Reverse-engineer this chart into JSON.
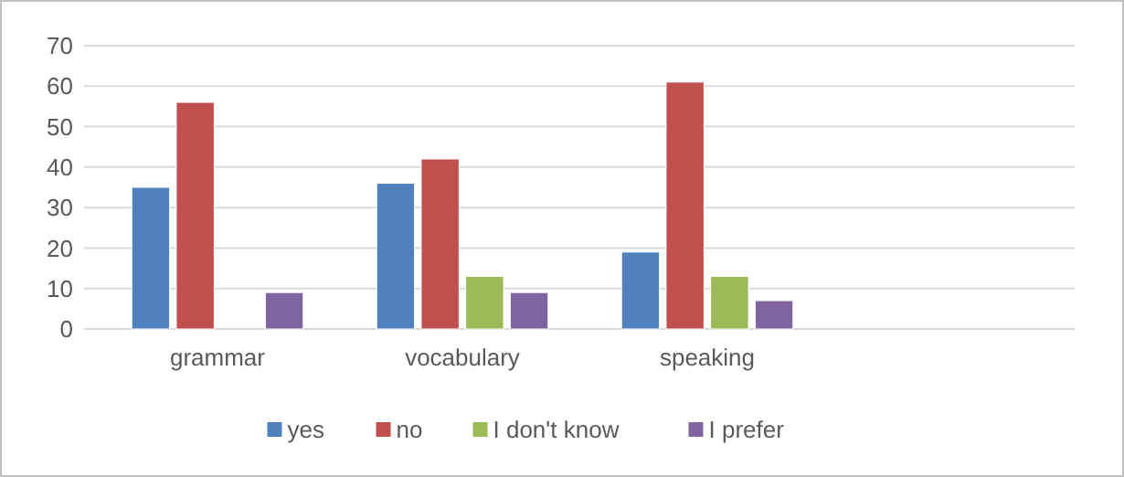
{
  "chart_data": {
    "type": "bar",
    "categories": [
      "grammar",
      "vocabulary",
      "speaking",
      null
    ],
    "series": [
      {
        "name": "yes",
        "color": "#4f81bd",
        "values": [
          35,
          36,
          19,
          null
        ]
      },
      {
        "name": "no",
        "color": "#c0504d",
        "values": [
          56,
          42,
          61,
          null
        ]
      },
      {
        "name": "I don't know",
        "color": "#9bbb59",
        "values": [
          null,
          13,
          13,
          null
        ]
      },
      {
        "name": "I prefer",
        "color": "#8064a2",
        "values": [
          9,
          9,
          7,
          null
        ]
      }
    ],
    "ylim": [
      0,
      70
    ],
    "yticks": [
      0,
      10,
      20,
      30,
      40,
      50,
      60,
      70
    ],
    "grid": "y",
    "legend": "bottom"
  }
}
